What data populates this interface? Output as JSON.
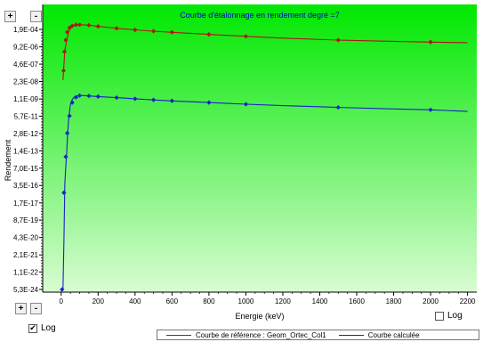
{
  "controls": {
    "zoom_plus": "+",
    "zoom_minus": "-",
    "log_label": "Log",
    "y_log_checked": true,
    "x_log_checked": false
  },
  "colors": {
    "plot_top": "#00e800",
    "plot_bottom": "#d8fcd2",
    "reference": "#b01414",
    "calculated": "#1a20c8",
    "axis_text": "#000000",
    "title_text": "#0000cc"
  },
  "chart_data": {
    "type": "line",
    "title": "Courbe d'étalonnage en rendement degré =7",
    "xlabel": "Energie (keV)",
    "ylabel": "Rendement",
    "xlim": [
      -100,
      2250
    ],
    "x_ticks": [
      0,
      200,
      400,
      600,
      800,
      1000,
      1200,
      1400,
      1600,
      1800,
      2000,
      2200
    ],
    "y_scale": "log",
    "y_tick_labels": [
      "1,9E-04",
      "9,2E-06",
      "4,6E-07",
      "2,3E-08",
      "1,1E-09",
      "5,7E-11",
      "2,8E-12",
      "1,4E-13",
      "7,0E-15",
      "3,5E-16",
      "1,7E-17",
      "8,7E-19",
      "4,3E-20",
      "2,1E-21",
      "1,1E-22",
      "5,3E-24"
    ],
    "y_tick_values": [
      0.00019,
      9.2e-06,
      4.6e-07,
      2.3e-08,
      1.1e-09,
      5.7e-11,
      2.8e-12,
      1.4e-13,
      7e-15,
      3.5e-16,
      1.7e-17,
      8.7e-19,
      4.3e-20,
      2.1e-21,
      1.1e-22,
      5.3e-24
    ],
    "legend_position": "bottom",
    "series": [
      {
        "name": "Courbe de référence : Geom_Ortec_Col1",
        "color": "#b01414",
        "line": {
          "x": [
            10,
            20,
            30,
            40,
            50,
            60,
            70,
            80,
            90,
            100,
            120,
            150,
            200,
            300,
            400,
            500,
            600,
            800,
            1000,
            1200,
            1500,
            1800,
            2000,
            2200
          ],
          "y": [
            3e-08,
            5e-06,
            3e-05,
            0.00012,
            0.00022,
            0.00032,
            0.00038,
            0.00042,
            0.00043,
            0.00043,
            0.00042,
            0.00039,
            0.00032,
            0.00023,
            0.000175,
            0.00014,
            0.000115,
            8e-05,
            5.7e-05,
            4.2e-05,
            3e-05,
            2.4e-05,
            2.1e-05,
            1.9e-05
          ]
        },
        "points": {
          "x": [
            13,
            18,
            25,
            33,
            45,
            60,
            80,
            100,
            150,
            200,
            300,
            400,
            500,
            600,
            800,
            1000,
            1500,
            2000
          ],
          "y": [
            1.5e-07,
            4e-06,
            3e-05,
            0.00012,
            0.00025,
            0.00035,
            0.00042,
            0.00043,
            0.00039,
            0.00032,
            0.00023,
            0.000175,
            0.00014,
            0.000115,
            8e-05,
            5.7e-05,
            3e-05,
            2.1e-05
          ]
        }
      },
      {
        "name": "Courbe calculée",
        "color": "#1a20c8",
        "line": {
          "x": [
            0,
            5,
            10,
            15,
            20,
            25,
            30,
            35,
            40,
            50,
            60,
            70,
            80,
            100,
            120,
            150,
            200,
            300,
            400,
            500,
            600,
            800,
            1000,
            1200,
            1500,
            1800,
            2000,
            2200
          ],
          "y": [
            5.3e-24,
            5.3e-24,
            5.3e-24,
            3e-20,
            5e-16,
            1e-14,
            1e-13,
            2.5e-12,
            3e-11,
            4e-10,
            1e-09,
            1.5e-09,
            1.8e-09,
            2e-09,
            2e-09,
            1.9e-09,
            1.7e-09,
            1.4e-09,
            1.15e-09,
            9.5e-10,
            8e-10,
            6e-10,
            4.5e-10,
            3.5e-10,
            2.6e-10,
            2e-10,
            1.7e-10,
            1.3e-10
          ]
        },
        "points": {
          "x": [
            5,
            15,
            25,
            33,
            45,
            60,
            80,
            100,
            150,
            200,
            300,
            400,
            500,
            600,
            800,
            1000,
            1500,
            2000
          ],
          "y": [
            5.3e-24,
            1e-16,
            5e-14,
            3e-12,
            6e-11,
            6e-10,
            1.5e-09,
            2e-09,
            1.9e-09,
            1.7e-09,
            1.4e-09,
            1.15e-09,
            9.5e-10,
            8e-10,
            6e-10,
            4.5e-10,
            2.6e-10,
            1.7e-10
          ]
        }
      }
    ]
  }
}
